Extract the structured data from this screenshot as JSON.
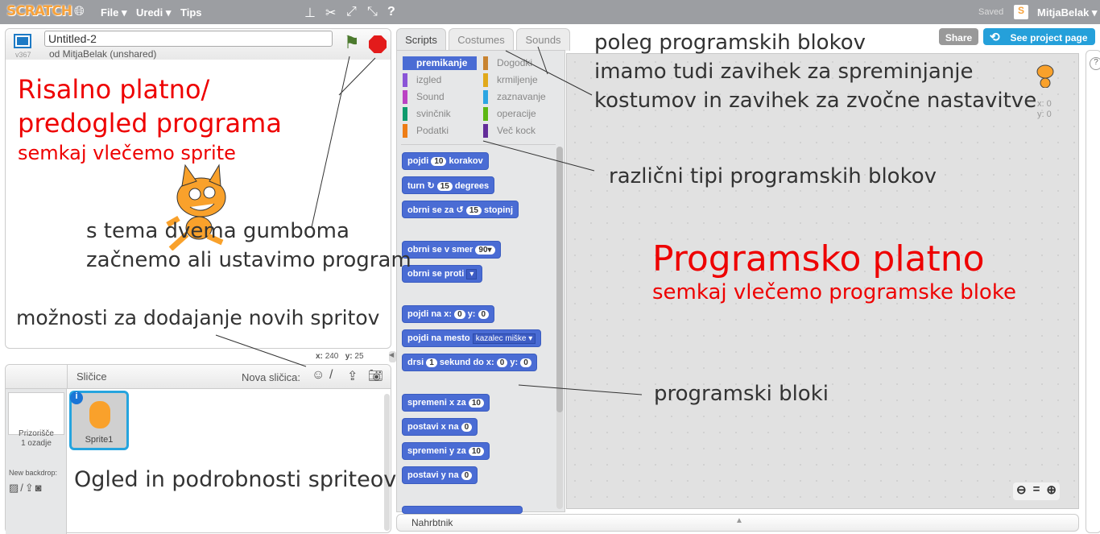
{
  "topbar": {
    "logo": "SCRATCH",
    "menus": [
      "File ▾",
      "Uredi ▾",
      "Tips"
    ],
    "saved": "Saved",
    "user": "MitjaBelak ▾"
  },
  "stage": {
    "title": "Untitled-2",
    "author": "od MitjaBelak (unshared)",
    "version": "v367",
    "coords": {
      "x_label": "x:",
      "x": "240",
      "y_label": "y:",
      "y": "25"
    }
  },
  "tabs": [
    "Scripts",
    "Costumes",
    "Sounds"
  ],
  "header_buttons": {
    "share": "Share",
    "project_page": "See project page"
  },
  "categories": [
    {
      "label": "premikanje",
      "color": "#4a6cd4"
    },
    {
      "label": "Dogodki",
      "color": "#c88330"
    },
    {
      "label": "izgled",
      "color": "#8a55d7"
    },
    {
      "label": "krmiljenje",
      "color": "#e1a91a"
    },
    {
      "label": "Sound",
      "color": "#bb42c3"
    },
    {
      "label": "zaznavanje",
      "color": "#2ca5e2"
    },
    {
      "label": "svinčnik",
      "color": "#0e9a6c"
    },
    {
      "label": "operacije",
      "color": "#5cb712"
    },
    {
      "label": "Podatki",
      "color": "#ee7d16"
    },
    {
      "label": "Več kock",
      "color": "#632d99"
    }
  ],
  "blocks": {
    "b1": [
      "pojdi",
      "10",
      "korakov"
    ],
    "b2": [
      "turn",
      "15",
      "degrees"
    ],
    "b3": [
      "obrni se za",
      "15",
      "stopinj"
    ],
    "b4": [
      "obrni se v smer",
      "90▾"
    ],
    "b5": [
      "obrni se proti",
      "▾"
    ],
    "b6": [
      "pojdi na x:",
      "0",
      "y:",
      "0"
    ],
    "b7": [
      "pojdi na mesto",
      "kazalec miške ▾"
    ],
    "b8": [
      "drsi",
      "1",
      "sekund do x:",
      "0",
      "y:",
      "0"
    ],
    "b9": [
      "spremeni x za",
      "10"
    ],
    "b10": [
      "postavi x na",
      "0"
    ],
    "b11": [
      "spremeni y za",
      "10"
    ],
    "b12": [
      "postavi y na",
      "0"
    ]
  },
  "script_area": {
    "x_label": "x: 0",
    "y_label": "y: 0"
  },
  "sprites": {
    "header": "Sličice",
    "new_label": "Nova sličica:",
    "stage_label": "Prizorišče",
    "stage_sub": "1 ozadje",
    "new_backdrop": "New backdrop:",
    "sprite_name": "Sprite1"
  },
  "backpack": "Nahrbtnik",
  "annotations": {
    "stage1": "Risalno platno/",
    "stage2": "predogled programa",
    "stage3": "semkaj vlečemo sprite",
    "buttons1": "s tema dvema gumboma",
    "buttons2": "začnemo ali ustavimo program",
    "newsprites": "možnosti za dodajanje novih spritov",
    "spriteinfo": "Ogled in podrobnosti spriteov",
    "tabs1": "poleg programskih blokov",
    "tabs2": "imamo tudi zavihek za spreminjanje",
    "tabs3": "kostumov in zavihek za zvočne nastavitve",
    "types": "različni tipi programskih blokov",
    "canvas1": "Programsko platno",
    "canvas2": "semkaj vlečemo programske bloke",
    "blocks": "programski bloki"
  }
}
